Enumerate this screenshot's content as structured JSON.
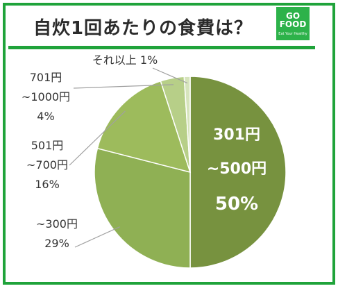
{
  "title": "自炊1回あたりの食費は？",
  "logo": {
    "main": "GO FOOD",
    "sub": "Eat Your Healthy"
  },
  "colors": {
    "frame": "#1fa33a",
    "slices": [
      "#77923f",
      "#8fb054",
      "#9dbb5c",
      "#b7cf88",
      "#d6e4bc"
    ],
    "leader": "#a0a0a0"
  },
  "chart_data": {
    "type": "pie",
    "title": "自炊1回あたりの食費は？",
    "start": "12 o'clock",
    "direction": "clockwise",
    "slices": [
      {
        "lines": [
          "301円",
          "~500円",
          "50%"
        ],
        "value": 50
      },
      {
        "lines": [
          "~300円",
          "29%"
        ],
        "value": 29
      },
      {
        "lines": [
          "501円",
          "~700円",
          "16%"
        ],
        "value": 16
      },
      {
        "lines": [
          "701円",
          "~1000円",
          "4%"
        ],
        "value": 4
      },
      {
        "lines": [
          "それ以上 1%"
        ],
        "value": 1
      }
    ]
  }
}
